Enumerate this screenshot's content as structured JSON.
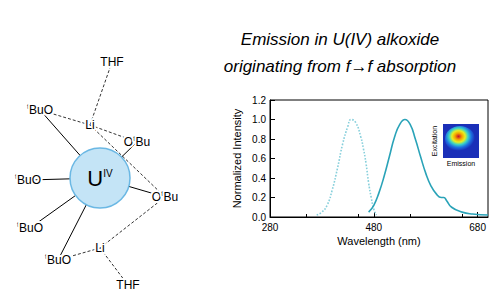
{
  "heading": [
    "Emission in U(IV) alkoxide",
    "originating from f→f absorption"
  ],
  "structure": {
    "metal": {
      "label": "U",
      "charge": "IV"
    },
    "atoms": [
      {
        "parts": [
          "",
          "",
          "THF"
        ]
      },
      {
        "parts": [
          "",
          "t",
          "BuO"
        ]
      },
      {
        "parts": [
          "",
          "",
          "Li"
        ]
      },
      {
        "parts": [
          "O",
          "t",
          "Bu"
        ]
      },
      {
        "parts": [
          "",
          "t",
          "BuO"
        ]
      },
      {
        "parts": [
          "O",
          "t",
          "Bu"
        ]
      },
      {
        "parts": [
          "",
          "t",
          "BuO"
        ]
      },
      {
        "parts": [
          "",
          "t",
          "BuO"
        ]
      },
      {
        "parts": [
          "",
          "",
          "Li"
        ]
      },
      {
        "parts": [
          "",
          "",
          "THF"
        ]
      }
    ]
  },
  "inset": {
    "x_label": "Emission",
    "y_label": "Excitation"
  },
  "chart_data": {
    "type": "line",
    "x_label": "Wavelength (nm)",
    "y_label": "Normalized Intensity",
    "xlim": [
      280,
      700
    ],
    "xticks": [
      280,
      480,
      680
    ],
    "ylim": [
      0,
      1.2
    ],
    "yticks": [
      {
        "value": 0,
        "label": "0.0"
      },
      0.2,
      0.4,
      0.6,
      0.8,
      {
        "value": 1,
        "label": "1.0"
      },
      1.2
    ],
    "grid": false,
    "series": [
      {
        "color": "#86cfdb",
        "line_style": "dotted",
        "x": [
          370,
          380,
          390,
          400,
          410,
          420,
          430,
          436,
          445,
          455,
          460,
          465,
          470,
          475,
          480,
          485
        ],
        "values": [
          0.02,
          0.05,
          0.12,
          0.28,
          0.5,
          0.75,
          0.93,
          1.0,
          0.97,
          0.82,
          0.7,
          0.55,
          0.35,
          0.2,
          0.08,
          0.02
        ]
      },
      {
        "color": "#2aa3b8",
        "line_style": "solid",
        "x": [
          470,
          480,
          490,
          500,
          510,
          520,
          530,
          540,
          550,
          560,
          570,
          580,
          590,
          600,
          610,
          615,
          620,
          630,
          650,
          670,
          700
        ],
        "values": [
          0.05,
          0.12,
          0.25,
          0.42,
          0.62,
          0.82,
          0.95,
          1.0,
          0.95,
          0.8,
          0.62,
          0.45,
          0.32,
          0.24,
          0.2,
          0.2,
          0.17,
          0.1,
          0.05,
          0.03,
          0.02
        ]
      }
    ]
  }
}
